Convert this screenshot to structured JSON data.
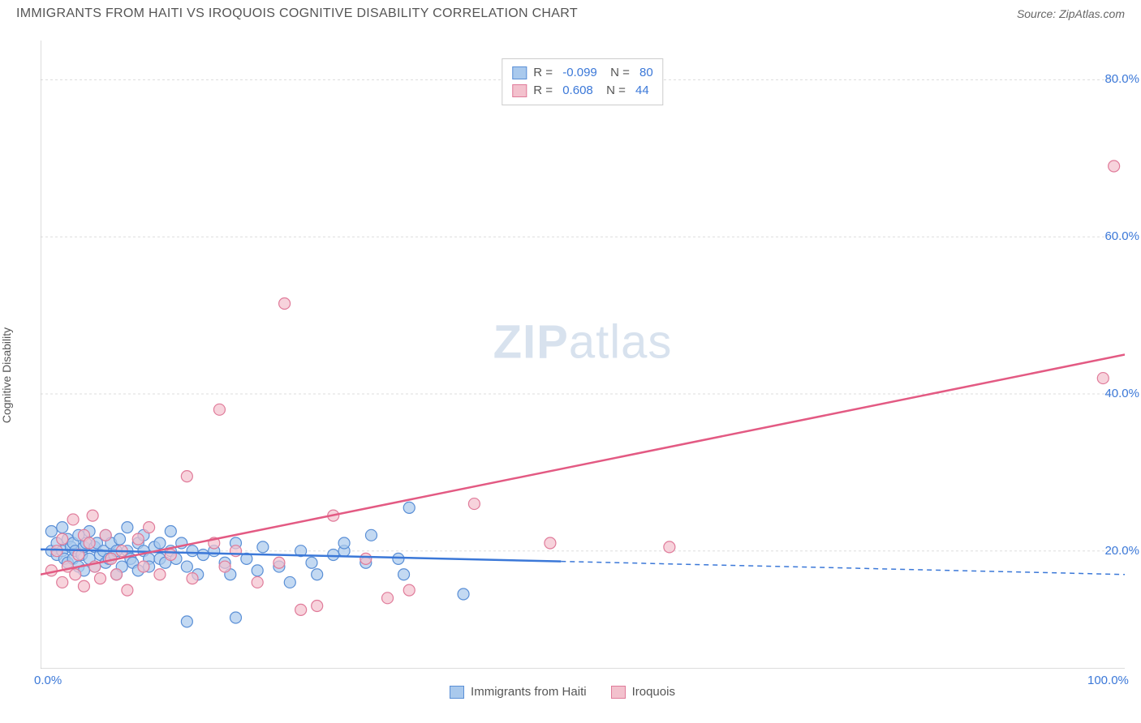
{
  "header": {
    "title": "IMMIGRANTS FROM HAITI VS IROQUOIS COGNITIVE DISABILITY CORRELATION CHART",
    "source": "Source: ZipAtlas.com"
  },
  "ylabel": "Cognitive Disability",
  "watermark": {
    "zip": "ZIP",
    "atlas": "atlas"
  },
  "chart": {
    "type": "scatter",
    "xlim": [
      0,
      100
    ],
    "ylim": [
      5,
      85
    ],
    "x_ticks": [
      {
        "v": 0,
        "label": "0.0%"
      },
      {
        "v": 100,
        "label": "100.0%"
      }
    ],
    "y_ticks": [
      {
        "v": 20,
        "label": "20.0%"
      },
      {
        "v": 40,
        "label": "40.0%"
      },
      {
        "v": 60,
        "label": "60.0%"
      },
      {
        "v": 80,
        "label": "80.0%"
      }
    ],
    "grid_color": "#dddddd",
    "background_color": "#ffffff",
    "axis_color": "#bbbbbb",
    "series": [
      {
        "name": "Immigrants from Haiti",
        "fill": "#a9c9ed",
        "stroke": "#5a8fd6",
        "line_color": "#3b78d8",
        "stats": {
          "R": "-0.099",
          "N": "80"
        },
        "trend": {
          "x1": 0,
          "y1": 20.2,
          "x2": 100,
          "y2": 17.0,
          "solid_until_x": 48
        },
        "points": [
          [
            1,
            22.5
          ],
          [
            1,
            20
          ],
          [
            1.5,
            19.5
          ],
          [
            1.5,
            21
          ],
          [
            2,
            20
          ],
          [
            2,
            23
          ],
          [
            2.2,
            19
          ],
          [
            2.5,
            21.5
          ],
          [
            2.5,
            18.5
          ],
          [
            2.8,
            20.5
          ],
          [
            3,
            19
          ],
          [
            3,
            21
          ],
          [
            3.2,
            20
          ],
          [
            3.5,
            18
          ],
          [
            3.5,
            22
          ],
          [
            3.8,
            19.5
          ],
          [
            4,
            20.5
          ],
          [
            4,
            17.5
          ],
          [
            4.2,
            21
          ],
          [
            4.5,
            19
          ],
          [
            4.5,
            22.5
          ],
          [
            5,
            18
          ],
          [
            5,
            20.5
          ],
          [
            5.2,
            21
          ],
          [
            5.5,
            19.5
          ],
          [
            5.8,
            20
          ],
          [
            6,
            22
          ],
          [
            6,
            18.5
          ],
          [
            6.3,
            19
          ],
          [
            6.5,
            21
          ],
          [
            6.8,
            19.5
          ],
          [
            7,
            20
          ],
          [
            7,
            17
          ],
          [
            7.3,
            21.5
          ],
          [
            7.5,
            18
          ],
          [
            8,
            20
          ],
          [
            8,
            23
          ],
          [
            8.3,
            19
          ],
          [
            8.5,
            18.5
          ],
          [
            9,
            21
          ],
          [
            9,
            17.5
          ],
          [
            9.5,
            20
          ],
          [
            9.5,
            22
          ],
          [
            10,
            19
          ],
          [
            10,
            18
          ],
          [
            10.5,
            20.5
          ],
          [
            11,
            19
          ],
          [
            11,
            21
          ],
          [
            11.5,
            18.5
          ],
          [
            12,
            20
          ],
          [
            12,
            22.5
          ],
          [
            12.5,
            19
          ],
          [
            13,
            21
          ],
          [
            13.5,
            18
          ],
          [
            14,
            20
          ],
          [
            14.5,
            17
          ],
          [
            15,
            19.5
          ],
          [
            13.5,
            11
          ],
          [
            16,
            20
          ],
          [
            17,
            18.5
          ],
          [
            17.5,
            17
          ],
          [
            18,
            21
          ],
          [
            18,
            11.5
          ],
          [
            19,
            19
          ],
          [
            20,
            17.5
          ],
          [
            20.5,
            20.5
          ],
          [
            22,
            18
          ],
          [
            23,
            16
          ],
          [
            24,
            20
          ],
          [
            25,
            18.5
          ],
          [
            25.5,
            17
          ],
          [
            27,
            19.5
          ],
          [
            28,
            20
          ],
          [
            30,
            18.5
          ],
          [
            30.5,
            22
          ],
          [
            33,
            19
          ],
          [
            34,
            25.5
          ],
          [
            39,
            14.5
          ],
          [
            33.5,
            17
          ],
          [
            28,
            21
          ]
        ]
      },
      {
        "name": "Iroquois",
        "fill": "#f3c1cd",
        "stroke": "#e07b9a",
        "line_color": "#e35a83",
        "stats": {
          "R": "0.608",
          "N": "44"
        },
        "trend": {
          "x1": 0,
          "y1": 17.0,
          "x2": 100,
          "y2": 45.0,
          "solid_until_x": 100
        },
        "points": [
          [
            1,
            17.5
          ],
          [
            1.5,
            20
          ],
          [
            2,
            16
          ],
          [
            2,
            21.5
          ],
          [
            2.5,
            18
          ],
          [
            3,
            24
          ],
          [
            3.2,
            17
          ],
          [
            3.5,
            19.5
          ],
          [
            4,
            22
          ],
          [
            4,
            15.5
          ],
          [
            4.5,
            21
          ],
          [
            4.8,
            24.5
          ],
          [
            5,
            18
          ],
          [
            5.5,
            16.5
          ],
          [
            6,
            22
          ],
          [
            6.5,
            19
          ],
          [
            7,
            17
          ],
          [
            7.5,
            20
          ],
          [
            8,
            15
          ],
          [
            9,
            21.5
          ],
          [
            9.5,
            18
          ],
          [
            10,
            23
          ],
          [
            11,
            17
          ],
          [
            12,
            19.5
          ],
          [
            13.5,
            29.5
          ],
          [
            14,
            16.5
          ],
          [
            16,
            21
          ],
          [
            16.5,
            38
          ],
          [
            17,
            18
          ],
          [
            18,
            20
          ],
          [
            20,
            16
          ],
          [
            22,
            18.5
          ],
          [
            22.5,
            51.5
          ],
          [
            24,
            12.5
          ],
          [
            25.5,
            13
          ],
          [
            27,
            24.5
          ],
          [
            30,
            19
          ],
          [
            32,
            14
          ],
          [
            34,
            15
          ],
          [
            40,
            26
          ],
          [
            47,
            21
          ],
          [
            58,
            20.5
          ],
          [
            98,
            42
          ],
          [
            99,
            69
          ]
        ]
      }
    ]
  },
  "legend_bottom": [
    {
      "name": "Immigrants from Haiti",
      "fill": "#a9c9ed",
      "stroke": "#5a8fd6"
    },
    {
      "name": "Iroquois",
      "fill": "#f3c1cd",
      "stroke": "#e07b9a"
    }
  ]
}
